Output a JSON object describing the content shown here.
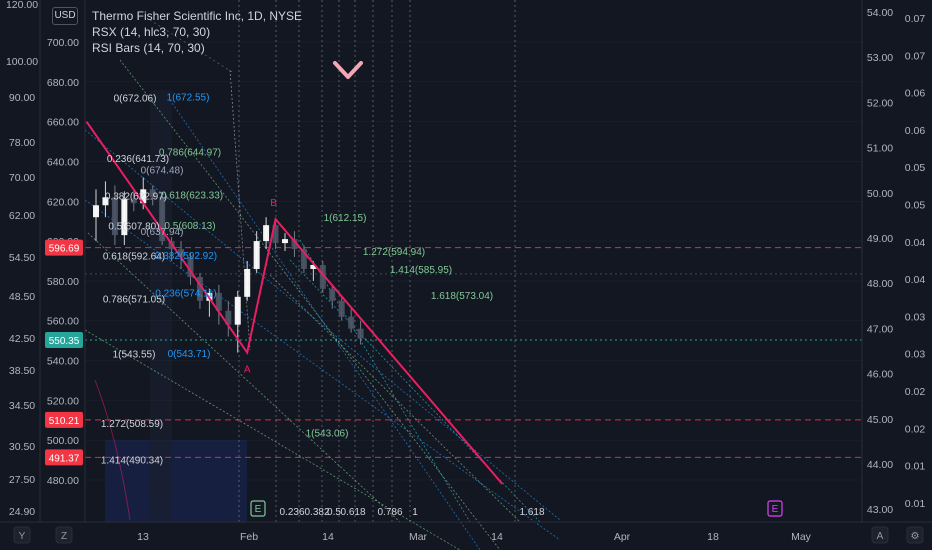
{
  "legend": {
    "symbol": "Thermo Fisher Scientific Inc, 1D, NYSE",
    "indicator1": "RSX (14, hlc3, 70, 30)",
    "indicator2": "RSI Bars (14, 70, 30)"
  },
  "currency_badge": "USD",
  "colors": {
    "background": "#131722",
    "grid": "#2a2e39",
    "candle_up": "#ffffff",
    "candle_down": "#4d5566",
    "pattern": "#e91e63",
    "fib_blue": "#2196f3",
    "fib_green": "#81c995",
    "price_badge": "#26a69a",
    "level_red": "#f23645"
  },
  "chart_data": {
    "type": "candlestick",
    "title": "Thermo Fisher Scientific Inc, 1D, NYSE",
    "price_axis_ticks": [
      "700.00",
      "680.00",
      "660.00",
      "640.00",
      "620.00",
      "600.00",
      "580.00",
      "560.00",
      "540.00",
      "520.00",
      "500.00",
      "480.00"
    ],
    "far_left_axis_ticks": [
      "120.00",
      "100.00",
      "90.00",
      "78.00",
      "70.00",
      "62.00",
      "54.50",
      "48.50",
      "42.50",
      "38.50",
      "34.50",
      "30.50",
      "27.50",
      "24.90"
    ],
    "right_axis1_ticks": [
      "54.00",
      "53.00",
      "52.00",
      "51.00",
      "50.00",
      "49.00",
      "48.00",
      "47.00",
      "46.00",
      "45.00",
      "44.00",
      "43.00"
    ],
    "right_axis2_ticks": [
      "0.07",
      "0.07",
      "0.06",
      "0.06",
      "0.05",
      "0.05",
      "0.04",
      "0.04",
      "0.03",
      "0.03",
      "0.02",
      "0.02",
      "0.01",
      "0.01"
    ],
    "time_axis_ticks": [
      "13",
      "Feb",
      "14",
      "Mar",
      "14",
      "Apr",
      "18",
      "May"
    ],
    "price_labels": [
      {
        "value": "596.69",
        "type": "level"
      },
      {
        "value": "550.35",
        "type": "last"
      },
      {
        "value": "510.21",
        "type": "level"
      },
      {
        "value": "491.37",
        "type": "level"
      }
    ],
    "candles": [
      {
        "o": 612,
        "h": 626,
        "l": 600,
        "c": 618
      },
      {
        "o": 618,
        "h": 630,
        "l": 612,
        "c": 622
      },
      {
        "o": 622,
        "h": 628,
        "l": 598,
        "c": 603
      },
      {
        "o": 603,
        "h": 625,
        "l": 598,
        "c": 621
      },
      {
        "o": 621,
        "h": 626,
        "l": 615,
        "c": 619
      },
      {
        "o": 619,
        "h": 632,
        "l": 616,
        "c": 626
      },
      {
        "o": 626,
        "h": 628,
        "l": 618,
        "c": 622
      },
      {
        "o": 622,
        "h": 624,
        "l": 598,
        "c": 600
      },
      {
        "o": 600,
        "h": 602,
        "l": 590,
        "c": 596
      },
      {
        "o": 596,
        "h": 600,
        "l": 586,
        "c": 592
      },
      {
        "o": 592,
        "h": 594,
        "l": 578,
        "c": 582
      },
      {
        "o": 582,
        "h": 584,
        "l": 566,
        "c": 570
      },
      {
        "o": 570,
        "h": 576,
        "l": 562,
        "c": 574
      },
      {
        "o": 574,
        "h": 578,
        "l": 558,
        "c": 565
      },
      {
        "o": 565,
        "h": 570,
        "l": 552,
        "c": 558
      },
      {
        "o": 558,
        "h": 575,
        "l": 544,
        "c": 572
      },
      {
        "o": 572,
        "h": 590,
        "l": 570,
        "c": 586
      },
      {
        "o": 586,
        "h": 605,
        "l": 584,
        "c": 600
      },
      {
        "o": 600,
        "h": 612,
        "l": 596,
        "c": 608
      },
      {
        "o": 608,
        "h": 610,
        "l": 596,
        "c": 599
      },
      {
        "o": 599,
        "h": 604,
        "l": 595,
        "c": 601
      },
      {
        "o": 601,
        "h": 605,
        "l": 592,
        "c": 596
      },
      {
        "o": 596,
        "h": 598,
        "l": 584,
        "c": 586
      },
      {
        "o": 586,
        "h": 590,
        "l": 580,
        "c": 588
      },
      {
        "o": 588,
        "h": 590,
        "l": 574,
        "c": 576
      },
      {
        "o": 576,
        "h": 578,
        "l": 566,
        "c": 570
      },
      {
        "o": 570,
        "h": 572,
        "l": 560,
        "c": 562
      },
      {
        "o": 562,
        "h": 566,
        "l": 554,
        "c": 556
      },
      {
        "o": 556,
        "h": 560,
        "l": 548,
        "c": 551
      }
    ],
    "xabcd_points": [
      {
        "label": "",
        "time": -1,
        "price": 660
      },
      {
        "label": "A",
        "time": 16,
        "price": 544
      },
      {
        "label": "B",
        "time": 19,
        "price": 611
      },
      {
        "label": "",
        "time": 43,
        "price": 478
      }
    ],
    "fib_set1": {
      "color": "white",
      "labels": [
        "0(672.06)",
        "0.236(641.73)",
        "0.382(622.97)",
        "0.5(607.80)",
        "0.618(592.64)",
        "0.786(571.05)",
        "1(543.55)",
        "1.272(508.59)",
        "1.414(490.34)"
      ],
      "values": [
        672.06,
        641.73,
        622.97,
        607.8,
        592.64,
        571.05,
        543.55,
        508.59,
        490.34
      ]
    },
    "fib_set2": {
      "labels": [
        "1(672.55)",
        "0.786(644.97)",
        "0.618(623.33)",
        "0.5(608.13)",
        "0.382(592.92)",
        "0.236(574.11)",
        "0(543.71)"
      ],
      "values": [
        672.55,
        644.97,
        623.33,
        608.13,
        592.92,
        574.11,
        543.71
      ]
    },
    "fib_overlap_labels": [
      {
        "text": "0(674.48)",
        "value": 636
      },
      {
        "text": "0(637.94)",
        "value": 605
      }
    ],
    "fib_set3": {
      "labels": [
        "1(612.15)",
        "1.272(594.94)",
        "1.414(585.95)",
        "1.618(573.04)",
        "1(543.06)"
      ],
      "values": [
        612.15,
        594.94,
        585.95,
        573.04,
        543.06
      ]
    },
    "time_fib_labels": [
      "0.236",
      "0.382",
      "0.5",
      "0.618",
      "0.786",
      "1",
      "1.618"
    ],
    "pattern_labels": [
      "A",
      "B"
    ],
    "event_markers": [
      "E",
      "E"
    ]
  },
  "corner_buttons": {
    "y_axis": "Y",
    "z_axis": "Z",
    "auto": "A",
    "settings": "⚙"
  }
}
